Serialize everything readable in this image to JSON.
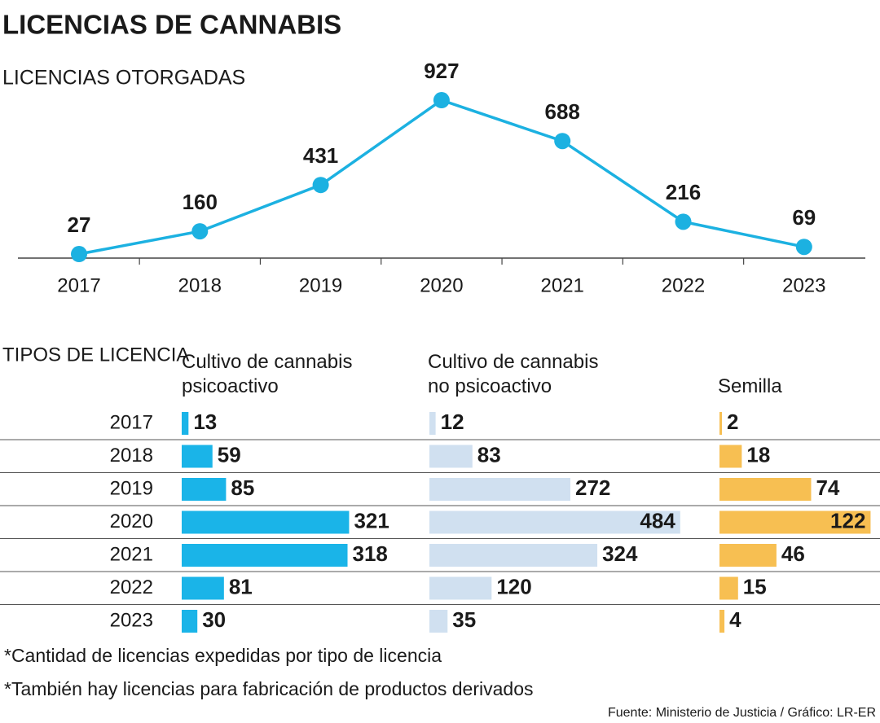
{
  "title": "LICENCIAS DE CANNABIS",
  "chart_data": [
    {
      "type": "line",
      "subtitle": "LICENCIAS OTORGADAS",
      "categories": [
        "2017",
        "2018",
        "2019",
        "2020",
        "2021",
        "2022",
        "2023"
      ],
      "values": [
        27,
        160,
        431,
        927,
        688,
        216,
        69
      ],
      "color": "#1cb1e1"
    },
    {
      "type": "bar",
      "title": "TIPOS DE LICENCIA",
      "categories": [
        "2017",
        "2018",
        "2019",
        "2020",
        "2021",
        "2022",
        "2023"
      ],
      "series": [
        {
          "name": "Cultivo de cannabis psicoactivo",
          "color": "#1ab4e8",
          "values": [
            13,
            59,
            85,
            321,
            318,
            81,
            30
          ]
        },
        {
          "name": "Cultivo de cannabis no psicoactivo",
          "color": "#d0e0f0",
          "values": [
            12,
            83,
            272,
            484,
            324,
            120,
            35
          ]
        },
        {
          "name": "Semilla",
          "color": "#f7bf52",
          "values": [
            2,
            18,
            74,
            122,
            46,
            15,
            4
          ]
        }
      ]
    }
  ],
  "notes": [
    "*Cantidad de licencias expedidas por tipo de licencia",
    "*También hay licencias para fabricación de productos derivados"
  ],
  "source": "Fuente: Ministerio de Justicia / Gráfico: LR-ER"
}
